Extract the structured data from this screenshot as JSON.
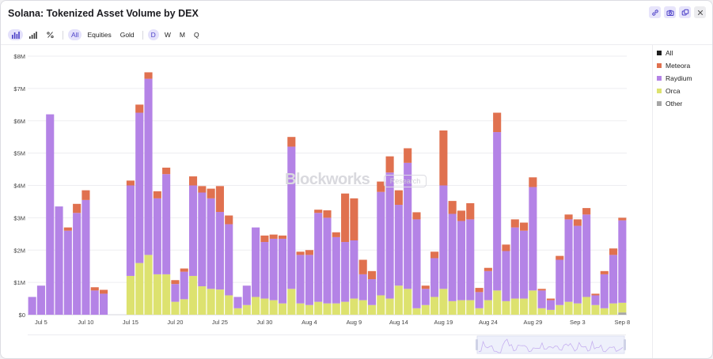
{
  "title": "Solana: Tokenized Asset Volume by DEX",
  "header_actions": [
    {
      "icon": "link-icon"
    },
    {
      "icon": "camera-icon"
    },
    {
      "icon": "copy-icon"
    },
    {
      "icon": "close-icon"
    }
  ],
  "toolbar": {
    "chart_types": [
      {
        "icon": "bar-chart-icon",
        "active": true
      },
      {
        "icon": "signal-bars-icon",
        "active": false
      },
      {
        "icon": "percent-icon",
        "active": false
      }
    ],
    "filters": [
      {
        "label": "All",
        "active": true
      },
      {
        "label": "Equities",
        "active": false
      },
      {
        "label": "Gold",
        "active": false
      }
    ],
    "intervals": [
      {
        "label": "D",
        "active": true
      },
      {
        "label": "W",
        "active": false
      },
      {
        "label": "M",
        "active": false
      },
      {
        "label": "Q",
        "active": false
      }
    ]
  },
  "watermark": {
    "brand": "Blockworks",
    "search": "Research"
  },
  "legend": [
    {
      "label": "All",
      "color": "#1f1f1f"
    },
    {
      "label": "Meteora",
      "color": "#e0714f"
    },
    {
      "label": "Raydium",
      "color": "#b483e6"
    },
    {
      "label": "Orca",
      "color": "#dde26f"
    },
    {
      "label": "Other",
      "color": "#a6a6a6"
    }
  ],
  "chart_data": {
    "type": "bar",
    "stacked": true,
    "title": "Solana: Tokenized Asset Volume by DEX",
    "ylim": [
      0,
      8000000
    ],
    "y_ticks": [
      "$0",
      "$1M",
      "$2M",
      "$3M",
      "$4M",
      "$5M",
      "$6M",
      "$7M",
      "$8M"
    ],
    "x_ticks": [
      "Jul 5",
      "Jul 10",
      "Jul 15",
      "Jul 20",
      "Jul 25",
      "Jul 30",
      "Aug 4",
      "Aug 9",
      "Aug 14",
      "Aug 19",
      "Aug 24",
      "Aug 29",
      "Sep 3",
      "Sep 8"
    ],
    "x_start": "Jul 4",
    "x_end": "Sep 8",
    "grid": true,
    "legend_position": "right",
    "series": [
      {
        "name": "Other",
        "color": "#a6a6a6",
        "values": [
          0,
          0,
          0,
          0,
          0,
          0,
          0,
          0,
          0,
          0,
          0,
          0,
          0,
          0,
          0,
          0,
          0,
          0,
          0,
          0,
          0,
          0,
          0,
          0,
          0,
          0,
          0,
          0,
          0,
          0,
          0,
          0,
          0,
          0,
          0,
          0,
          0,
          0,
          0,
          0,
          0,
          0,
          0,
          0,
          0,
          0,
          0,
          0,
          0,
          0,
          0,
          0,
          0,
          0,
          0,
          0,
          0,
          0,
          0,
          0,
          0,
          0,
          0,
          0,
          0,
          0,
          0.07
        ]
      },
      {
        "name": "Orca",
        "color": "#dde26f",
        "values": [
          0,
          0,
          0,
          0,
          0,
          0,
          0,
          0,
          0,
          0,
          0,
          1.2,
          1.6,
          1.85,
          1.25,
          1.25,
          0.4,
          0.48,
          1.2,
          0.88,
          0.8,
          0.78,
          0.6,
          0.2,
          0.3,
          0.55,
          0.5,
          0.45,
          0.35,
          0.8,
          0.35,
          0.3,
          0.4,
          0.35,
          0.35,
          0.4,
          0.5,
          0.45,
          0.3,
          0.6,
          0.5,
          0.9,
          0.8,
          0.2,
          0.3,
          0.55,
          0.8,
          0.42,
          0.45,
          0.45,
          0.2,
          0.45,
          0.75,
          0.42,
          0.5,
          0.5,
          0.75,
          0.2,
          0.15,
          0.3,
          0.4,
          0.35,
          0.55,
          0.3,
          0.2,
          0.35,
          0.3
        ]
      },
      {
        "name": "Raydium",
        "color": "#b483e6",
        "values": [
          0.55,
          0.9,
          6.2,
          3.35,
          2.6,
          3.15,
          3.55,
          0.75,
          0.65,
          0,
          0,
          2.8,
          4.65,
          5.45,
          2.35,
          3.1,
          0.55,
          0.85,
          2.8,
          2.9,
          2.8,
          2.4,
          2.2,
          0.35,
          0.6,
          2.15,
          1.75,
          1.9,
          2.0,
          4.4,
          1.5,
          1.55,
          2.75,
          2.65,
          2.05,
          1.85,
          1.8,
          0.8,
          0.8,
          3.2,
          3.9,
          2.5,
          3.9,
          2.75,
          0.5,
          1.2,
          3.2,
          2.7,
          2.45,
          2.5,
          0.5,
          0.9,
          4.9,
          1.55,
          2.2,
          2.1,
          3.2,
          0.55,
          0.3,
          1.4,
          2.55,
          2.4,
          2.55,
          0.3,
          1.05,
          1.5,
          2.55
        ]
      },
      {
        "name": "Meteora",
        "color": "#e0714f",
        "values": [
          0,
          0,
          0,
          0,
          0.1,
          0.28,
          0.3,
          0.1,
          0.12,
          0,
          0,
          0.15,
          0.25,
          0.2,
          0.22,
          0.2,
          0.12,
          0.1,
          0.28,
          0.2,
          0.3,
          0.8,
          0.27,
          0,
          0,
          0,
          0.2,
          0.13,
          0.1,
          0.3,
          0.1,
          0.15,
          0.1,
          0.23,
          0.15,
          1.5,
          1.3,
          0.45,
          0.25,
          0.32,
          0.5,
          0.45,
          0.45,
          0.22,
          0.1,
          0.2,
          1.7,
          0.4,
          0.32,
          0.5,
          0.13,
          0.1,
          0.6,
          0.2,
          0.25,
          0.25,
          0.3,
          0.05,
          0.05,
          0.12,
          0.15,
          0.2,
          0.2,
          0.05,
          0.1,
          0.2,
          0.08
        ]
      }
    ]
  }
}
